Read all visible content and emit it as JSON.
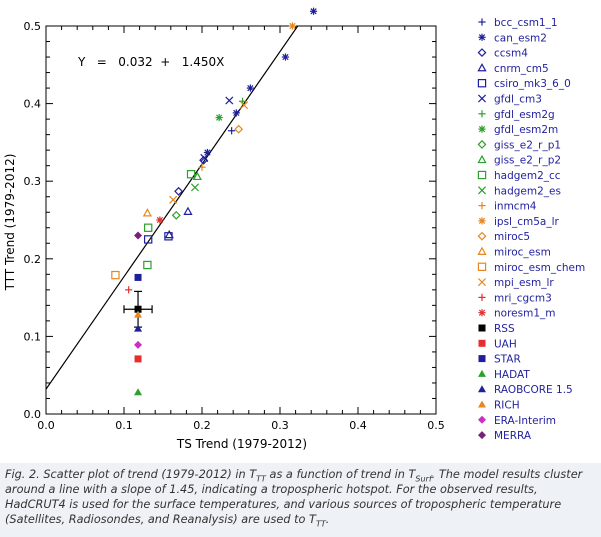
{
  "chart_data": {
    "type": "scatter",
    "xlabel": "TS Trend (1979-2012)",
    "ylabel": "TTT Trend (1979-2012)",
    "xlim": [
      0.0,
      0.5
    ],
    "ylim": [
      0.0,
      0.5
    ],
    "x_ticks": [
      0.0,
      0.1,
      0.2,
      0.3,
      0.4,
      0.5
    ],
    "y_ticks": [
      0.0,
      0.1,
      0.2,
      0.3,
      0.4,
      0.5
    ],
    "tick_labels_x": [
      "0.0",
      "0.1",
      "0.2",
      "0.3",
      "0.4",
      "0.5"
    ],
    "tick_labels_y": [
      "0.0",
      "0.1",
      "0.2",
      "0.3",
      "0.4",
      "0.5"
    ],
    "legend_position": "right",
    "fit": {
      "label": "Y   =   0.032  +   1.450X",
      "intercept": 0.032,
      "slope": 1.45
    },
    "error_bar": {
      "x": 0.118,
      "y": 0.135,
      "x_err": 0.018,
      "y_err": 0.023
    },
    "series": [
      {
        "name": "bcc_csm1_1",
        "marker": "plus",
        "color": "#1f1f9e",
        "points": [
          [
            0.238,
            0.365
          ]
        ]
      },
      {
        "name": "can_esm2",
        "marker": "asterisk",
        "color": "#1f1f9e",
        "points": [
          [
            0.343,
            0.519
          ],
          [
            0.307,
            0.46
          ],
          [
            0.262,
            0.42
          ],
          [
            0.244,
            0.388
          ],
          [
            0.207,
            0.337
          ]
        ]
      },
      {
        "name": "ccsm4",
        "marker": "diamond",
        "color": "#1f1f9e",
        "points": [
          [
            0.17,
            0.287
          ],
          [
            0.202,
            0.327
          ]
        ]
      },
      {
        "name": "cnrm_cm5",
        "marker": "triangle",
        "color": "#1f1f9e",
        "points": [
          [
            0.182,
            0.261
          ],
          [
            0.158,
            0.231
          ]
        ]
      },
      {
        "name": "csiro_mk3_6_0",
        "marker": "square",
        "color": "#1f1f9e",
        "points": [
          [
            0.131,
            0.225
          ],
          [
            0.157,
            0.229
          ]
        ]
      },
      {
        "name": "gfdl_cm3",
        "marker": "x",
        "color": "#1f1f9e",
        "points": [
          [
            0.235,
            0.404
          ],
          [
            0.203,
            0.33
          ]
        ]
      },
      {
        "name": "gfdl_esm2g",
        "marker": "plus",
        "color": "#2da02d",
        "points": [
          [
            0.252,
            0.403
          ]
        ]
      },
      {
        "name": "gfdl_esm2m",
        "marker": "asterisk",
        "color": "#2da02d",
        "points": [
          [
            0.222,
            0.382
          ]
        ]
      },
      {
        "name": "giss_e2_r_p1",
        "marker": "diamond",
        "color": "#2da02d",
        "points": [
          [
            0.167,
            0.256
          ]
        ]
      },
      {
        "name": "giss_e2_r_p2",
        "marker": "triangle",
        "color": "#2da02d",
        "points": [
          [
            0.194,
            0.306
          ]
        ]
      },
      {
        "name": "hadgem2_cc",
        "marker": "square",
        "color": "#2da02d",
        "points": [
          [
            0.186,
            0.309
          ],
          [
            0.131,
            0.24
          ],
          [
            0.13,
            0.192
          ]
        ]
      },
      {
        "name": "hadgem2_es",
        "marker": "x",
        "color": "#2da02d",
        "points": [
          [
            0.191,
            0.292
          ]
        ]
      },
      {
        "name": "inmcm4",
        "marker": "plus",
        "color": "#e8871e",
        "points": [
          [
            0.2,
            0.318
          ]
        ]
      },
      {
        "name": "ipsl_cm5a_lr",
        "marker": "asterisk",
        "color": "#e8871e",
        "points": [
          [
            0.316,
            0.5
          ]
        ]
      },
      {
        "name": "miroc5",
        "marker": "diamond",
        "color": "#e8871e",
        "points": [
          [
            0.247,
            0.367
          ]
        ]
      },
      {
        "name": "miroc_esm",
        "marker": "triangle",
        "color": "#e8871e",
        "points": [
          [
            0.13,
            0.259
          ]
        ]
      },
      {
        "name": "miroc_esm_chem",
        "marker": "square",
        "color": "#e8871e",
        "points": [
          [
            0.089,
            0.179
          ]
        ]
      },
      {
        "name": "mpi_esm_lr",
        "marker": "x",
        "color": "#e8871e",
        "points": [
          [
            0.254,
            0.398
          ],
          [
            0.163,
            0.276
          ]
        ]
      },
      {
        "name": "mri_cgcm3",
        "marker": "plus",
        "color": "#e62e2e",
        "points": [
          [
            0.106,
            0.16
          ]
        ]
      },
      {
        "name": "noresm1_m",
        "marker": "asterisk",
        "color": "#e62e2e",
        "points": [
          [
            0.146,
            0.25
          ]
        ]
      },
      {
        "name": "RSS",
        "marker": "filled-square",
        "color": "#000000",
        "points": [
          [
            0.118,
            0.135
          ]
        ]
      },
      {
        "name": "UAH",
        "marker": "filled-square",
        "color": "#e62e2e",
        "points": [
          [
            0.118,
            0.071
          ]
        ]
      },
      {
        "name": "STAR",
        "marker": "filled-square",
        "color": "#1f1f9e",
        "points": [
          [
            0.118,
            0.176
          ]
        ]
      },
      {
        "name": "HADAT",
        "marker": "filled-triangle",
        "color": "#2da02d",
        "points": [
          [
            0.118,
            0.028
          ]
        ]
      },
      {
        "name": "RAOBCORE 1.5",
        "marker": "filled-triangle",
        "color": "#1f1f9e",
        "points": [
          [
            0.118,
            0.11
          ]
        ]
      },
      {
        "name": "RICH",
        "marker": "filled-triangle",
        "color": "#e8871e",
        "points": [
          [
            0.118,
            0.128
          ]
        ]
      },
      {
        "name": "ERA-Interim",
        "marker": "filled-diamond",
        "color": "#cc2ec8",
        "points": [
          [
            0.118,
            0.089
          ]
        ]
      },
      {
        "name": "MERRA",
        "marker": "filled-diamond",
        "color": "#7a1f7a",
        "points": [
          [
            0.118,
            0.23
          ]
        ]
      }
    ]
  }
}
